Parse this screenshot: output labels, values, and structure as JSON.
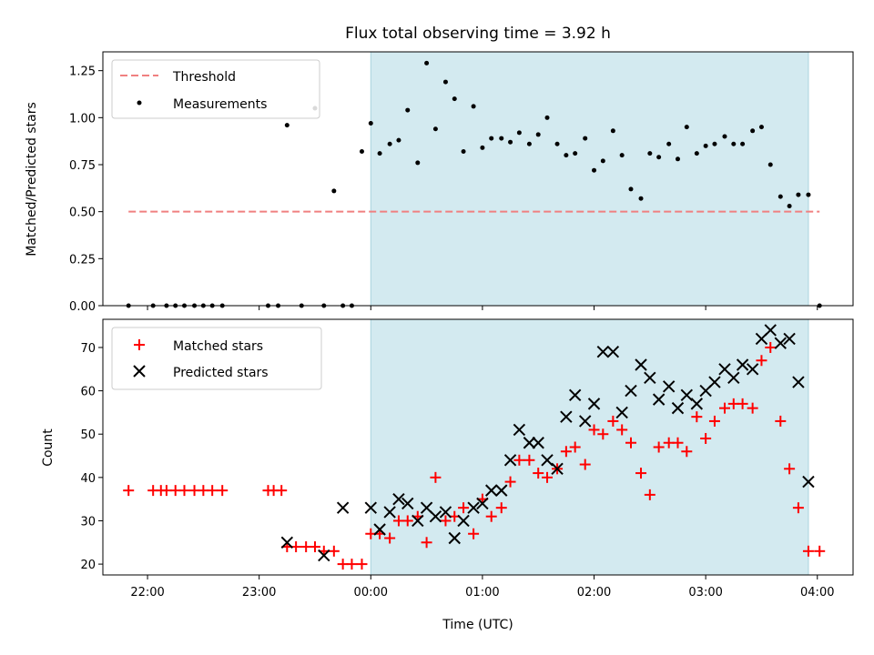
{
  "figure": {
    "title": "Flux total observing time = 3.92 h",
    "xlabel": "Time (UTC)",
    "x_ticks": [
      "22:00",
      "23:00",
      "00:00",
      "01:00",
      "02:00",
      "03:00",
      "04:00"
    ],
    "x_tick_hours": [
      22,
      23,
      24,
      25,
      26,
      27,
      28
    ]
  },
  "chart_data": [
    {
      "type": "scatter",
      "xlabel": "",
      "ylabel": "Matched/Predicted stars",
      "ylim": [
        0,
        1.35
      ],
      "xlim_hours": [
        21.6,
        28.32
      ],
      "y_ticks": [
        "0.00",
        "0.25",
        "0.50",
        "0.75",
        "1.00",
        "1.25"
      ],
      "y_tick_values": [
        0,
        0.25,
        0.5,
        0.75,
        1.0,
        1.25
      ],
      "grid": false,
      "legend_position": "top-left",
      "observing_window_hours": [
        24.0,
        27.92
      ],
      "observing_window_color": "#d3eaf0",
      "threshold": {
        "name": "Threshold",
        "value": 0.5,
        "x_range_hours": [
          21.83,
          28.02
        ],
        "color": "#f08080"
      },
      "series": [
        {
          "name": "Measurements",
          "color": "#000000",
          "x_hours": [
            21.83,
            22.05,
            22.17,
            22.25,
            22.33,
            22.42,
            22.5,
            22.58,
            22.67,
            23.08,
            23.17,
            23.25,
            23.38,
            23.5,
            23.58,
            23.67,
            23.75,
            23.83,
            23.92,
            24.0,
            24.08,
            24.17,
            24.25,
            24.33,
            24.42,
            24.5,
            24.58,
            24.67,
            24.75,
            24.83,
            24.92,
            25.0,
            25.08,
            25.17,
            25.25,
            25.33,
            25.42,
            25.5,
            25.58,
            25.67,
            25.75,
            25.83,
            25.92,
            26.0,
            26.08,
            26.17,
            26.25,
            26.33,
            26.42,
            26.5,
            26.58,
            26.67,
            26.75,
            26.83,
            26.92,
            27.0,
            27.08,
            27.17,
            27.25,
            27.33,
            27.42,
            27.5,
            27.58,
            27.67,
            27.75,
            27.83,
            27.92,
            28.02
          ],
          "y": [
            0,
            0,
            0,
            0,
            0,
            0,
            0,
            0,
            0,
            0,
            0,
            0.96,
            0,
            1.05,
            0,
            0.61,
            0,
            0,
            0.82,
            0.97,
            0.81,
            0.86,
            0.88,
            1.04,
            0.76,
            1.29,
            0.94,
            1.19,
            1.1,
            0.82,
            1.06,
            0.84,
            0.89,
            0.89,
            0.87,
            0.92,
            0.86,
            0.91,
            1.0,
            0.86,
            0.8,
            0.81,
            0.89,
            0.72,
            0.77,
            0.93,
            0.8,
            0.62,
            0.57,
            0.81,
            0.79,
            0.86,
            0.78,
            0.95,
            0.81,
            0.85,
            0.86,
            0.9,
            0.86,
            0.86,
            0.93,
            0.95,
            0.75,
            0.58,
            0.53,
            0.59,
            0.59,
            0
          ]
        }
      ]
    },
    {
      "type": "scatter",
      "xlabel": "Time (UTC)",
      "ylabel": "Count",
      "ylim": [
        17.5,
        76.5
      ],
      "xlim_hours": [
        21.6,
        28.32
      ],
      "y_ticks": [
        "20",
        "30",
        "40",
        "50",
        "60",
        "70"
      ],
      "y_tick_values": [
        20,
        30,
        40,
        50,
        60,
        70
      ],
      "grid": false,
      "legend_position": "top-left",
      "observing_window_hours": [
        24.0,
        27.92
      ],
      "series": [
        {
          "name": "Matched stars",
          "marker": "+",
          "color": "#ff0000",
          "x_hours": [
            21.83,
            22.05,
            22.12,
            22.17,
            22.25,
            22.33,
            22.42,
            22.5,
            22.58,
            22.67,
            23.08,
            23.13,
            23.2,
            23.25,
            23.33,
            23.42,
            23.5,
            23.58,
            23.67,
            23.75,
            23.83,
            23.92,
            24.0,
            24.08,
            24.17,
            24.25,
            24.33,
            24.42,
            24.5,
            24.58,
            24.67,
            24.75,
            24.83,
            24.92,
            25.0,
            25.08,
            25.17,
            25.25,
            25.33,
            25.42,
            25.5,
            25.58,
            25.67,
            25.75,
            25.83,
            25.92,
            26.0,
            26.08,
            26.17,
            26.25,
            26.33,
            26.42,
            26.5,
            26.58,
            26.67,
            26.75,
            26.83,
            26.92,
            27.0,
            27.08,
            27.17,
            27.25,
            27.33,
            27.42,
            27.5,
            27.58,
            27.67,
            27.75,
            27.83,
            27.92,
            28.02
          ],
          "y": [
            37,
            37,
            37,
            37,
            37,
            37,
            37,
            37,
            37,
            37,
            37,
            37,
            37,
            24,
            24,
            24,
            24,
            23,
            23,
            20,
            20,
            20,
            27,
            27,
            26,
            30,
            30,
            31,
            25,
            40,
            30,
            31,
            33,
            27,
            35,
            31,
            33,
            39,
            44,
            44,
            41,
            40,
            42,
            46,
            47,
            43,
            51,
            50,
            53,
            51,
            48,
            41,
            36,
            47,
            48,
            48,
            46,
            54,
            49,
            53,
            56,
            57,
            57,
            56,
            67,
            70,
            53,
            42,
            33,
            23,
            23
          ]
        },
        {
          "name": "Predicted stars",
          "marker": "x",
          "color": "#000000",
          "x_hours": [
            23.25,
            23.58,
            23.75,
            24.0,
            24.08,
            24.17,
            24.25,
            24.33,
            24.42,
            24.5,
            24.58,
            24.67,
            24.75,
            24.83,
            24.92,
            25.0,
            25.08,
            25.17,
            25.25,
            25.33,
            25.42,
            25.5,
            25.58,
            25.67,
            25.75,
            25.83,
            25.92,
            26.0,
            26.08,
            26.17,
            26.25,
            26.33,
            26.42,
            26.5,
            26.58,
            26.67,
            26.75,
            26.83,
            26.92,
            27.0,
            27.08,
            27.17,
            27.25,
            27.33,
            27.42,
            27.5,
            27.58,
            27.67,
            27.75,
            27.83,
            27.92
          ],
          "y": [
            25,
            22,
            33,
            33,
            28,
            32,
            35,
            34,
            30,
            33,
            31,
            32,
            26,
            30,
            33,
            34,
            37,
            37,
            44,
            51,
            48,
            48,
            44,
            42,
            54,
            59,
            53,
            57,
            69,
            69,
            55,
            60,
            66,
            63,
            58,
            61,
            56,
            59,
            57,
            60,
            62,
            65,
            63,
            66,
            65,
            72,
            74,
            71,
            72,
            62,
            39
          ]
        }
      ]
    }
  ]
}
